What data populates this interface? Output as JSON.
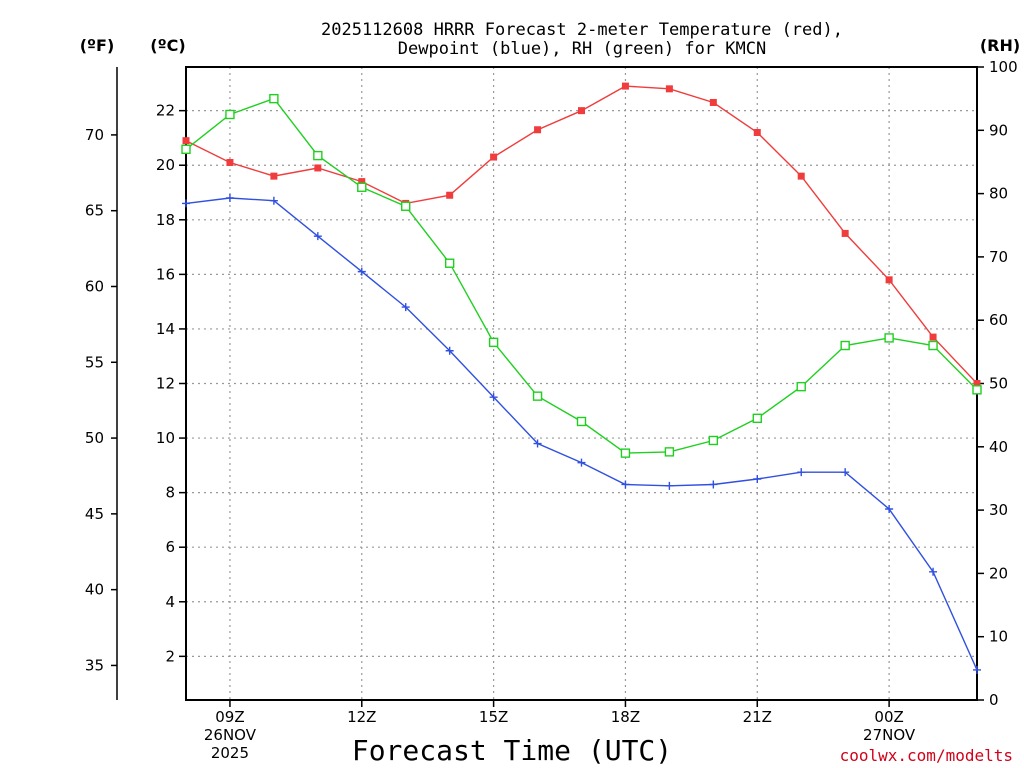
{
  "chart_data": {
    "type": "line",
    "title_line1": "2025112608 HRRR Forecast 2-meter Temperature (red),",
    "title_line2": "Dewpoint (blue), RH (green) for KMCN",
    "xlabel": "Forecast Time (UTC)",
    "credit": "coolwx.com/modelts",
    "units": {
      "fahrenheit": "(ºF)",
      "celsius": "(ºC)",
      "rh": "(RH)"
    },
    "hours": [
      8,
      9,
      10,
      11,
      12,
      13,
      14,
      15,
      16,
      17,
      18,
      19,
      20,
      21,
      22,
      23,
      24,
      25,
      26
    ],
    "x_ticks": [
      {
        "hour": 9,
        "lines": [
          "09Z",
          "26NOV",
          "2025"
        ]
      },
      {
        "hour": 12,
        "lines": [
          "12Z"
        ]
      },
      {
        "hour": 15,
        "lines": [
          "15Z"
        ]
      },
      {
        "hour": 18,
        "lines": [
          "18Z"
        ]
      },
      {
        "hour": 21,
        "lines": [
          "21Z"
        ]
      },
      {
        "hour": 24,
        "lines": [
          "00Z",
          "27NOV"
        ]
      }
    ],
    "xlim": [
      8,
      26
    ],
    "celsius_axis": {
      "ylim": [
        0.4,
        23.6
      ],
      "ticks": [
        "2",
        "4",
        "6",
        "8",
        "10",
        "12",
        "14",
        "16",
        "18",
        "20",
        "22"
      ]
    },
    "fahrenheit_axis": {
      "ticks": [
        "35",
        "40",
        "45",
        "50",
        "55",
        "60",
        "65",
        "70"
      ]
    },
    "rh_axis": {
      "ylim": [
        0,
        100
      ],
      "ticks": [
        "0",
        "10",
        "20",
        "30",
        "40",
        "50",
        "60",
        "70",
        "80",
        "90",
        "100"
      ]
    },
    "series": [
      {
        "name": "Temperature",
        "unit": "C",
        "color": "#f03c3c",
        "marker": "filled-square",
        "values": [
          20.9,
          20.1,
          19.6,
          19.9,
          19.4,
          18.6,
          18.9,
          20.3,
          21.3,
          22.0,
          22.9,
          22.8,
          22.3,
          21.2,
          19.6,
          17.5,
          15.8,
          13.7,
          12.0
        ]
      },
      {
        "name": "Dewpoint",
        "unit": "C",
        "color": "#3050e0",
        "marker": "plus",
        "values": [
          18.6,
          18.8,
          18.7,
          17.4,
          16.1,
          14.8,
          13.2,
          11.5,
          9.8,
          9.1,
          8.3,
          8.25,
          8.3,
          8.5,
          8.75,
          8.75,
          7.4,
          5.1,
          1.5
        ]
      },
      {
        "name": "RH",
        "unit": "%",
        "color": "#20d020",
        "marker": "open-square",
        "values": [
          87,
          92.5,
          95,
          86,
          81,
          78,
          69,
          56.5,
          48,
          44,
          39,
          39.2,
          41,
          44.5,
          49.5,
          56,
          57.2,
          56,
          49
        ]
      }
    ]
  }
}
